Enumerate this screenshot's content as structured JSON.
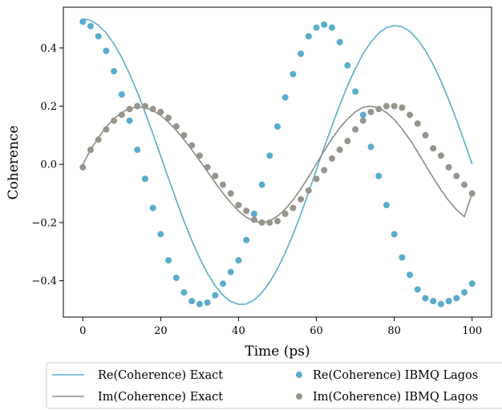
{
  "chart_data": {
    "type": "line",
    "title": "",
    "xlabel": "Time (ps)",
    "ylabel": "Coherence",
    "xlim": [
      -5,
      105
    ],
    "ylim": [
      -0.525,
      0.54
    ],
    "xticks": [
      0,
      20,
      40,
      60,
      80,
      100
    ],
    "xtick_labels": [
      "0",
      "20",
      "40",
      "60",
      "80",
      "100"
    ],
    "yticks": [
      -0.4,
      -0.2,
      0.0,
      0.2,
      0.4
    ],
    "ytick_labels": [
      "−0.4",
      "−0.2",
      "0.0",
      "0.2",
      "0.4"
    ],
    "grid": false,
    "legend_position": "bottom-center, outside plot, 2 columns",
    "colors": {
      "re": "#5aaccc",
      "im": "#8c8c84",
      "re_marker": "#5aaccc",
      "im_marker": "#96958b"
    },
    "legend": [
      {
        "label": "Re(Coherence) Exact",
        "kind": "line",
        "series": "re"
      },
      {
        "label": "Im(Coherence) Exact",
        "kind": "line",
        "series": "im"
      },
      {
        "label": "Re(Coherence) IBMQ Lagos",
        "kind": "marker",
        "series": "re"
      },
      {
        "label": "Im(Coherence) IBMQ Lagos",
        "kind": "marker",
        "series": "im"
      }
    ],
    "x": [
      0,
      2,
      4,
      6,
      8,
      10,
      12,
      14,
      16,
      18,
      20,
      22,
      24,
      26,
      28,
      30,
      32,
      34,
      36,
      38,
      40,
      42,
      44,
      46,
      48,
      50,
      52,
      54,
      56,
      58,
      60,
      62,
      64,
      66,
      68,
      70,
      72,
      74,
      76,
      78,
      80,
      82,
      84,
      86,
      88,
      90,
      92,
      94,
      96,
      98,
      100
    ],
    "series": [
      {
        "name": "Re(Coherence) Exact",
        "kind": "line",
        "values": [
          0.5,
          0.495,
          0.478,
          0.452,
          0.414,
          0.367,
          0.311,
          0.248,
          0.178,
          0.105,
          0.029,
          -0.048,
          -0.123,
          -0.195,
          -0.262,
          -0.322,
          -0.374,
          -0.417,
          -0.45,
          -0.471,
          -0.481,
          -0.48,
          -0.466,
          -0.441,
          -0.405,
          -0.359,
          -0.304,
          -0.241,
          -0.171,
          -0.096,
          -0.019,
          0.058,
          0.132,
          0.204,
          0.27,
          0.329,
          0.38,
          0.42,
          0.451,
          0.47,
          0.477,
          0.473,
          0.457,
          0.429,
          0.391,
          0.343,
          0.286,
          0.222,
          0.152,
          0.078,
          0.001
        ]
      },
      {
        "name": "Im(Coherence) Exact",
        "kind": "line",
        "values": [
          0.0,
          0.05,
          0.092,
          0.128,
          0.157,
          0.178,
          0.192,
          0.197,
          0.195,
          0.185,
          0.168,
          0.145,
          0.117,
          0.085,
          0.05,
          0.013,
          -0.025,
          -0.063,
          -0.099,
          -0.132,
          -0.16,
          -0.182,
          -0.196,
          -0.2,
          -0.194,
          -0.178,
          -0.154,
          -0.122,
          -0.085,
          -0.043,
          0.002,
          0.046,
          0.088,
          0.125,
          0.156,
          0.18,
          0.196,
          0.2,
          0.194,
          0.178,
          0.154,
          0.122,
          0.085,
          0.043,
          -0.002,
          -0.046,
          -0.088,
          -0.125,
          -0.156,
          -0.18,
          -0.1
        ]
      },
      {
        "name": "Re(Coherence) IBMQ Lagos",
        "kind": "scatter",
        "values": [
          0.49,
          0.475,
          0.44,
          0.39,
          0.32,
          0.24,
          0.15,
          0.05,
          -0.05,
          -0.15,
          -0.24,
          -0.33,
          -0.39,
          -0.44,
          -0.47,
          -0.48,
          -0.475,
          -0.45,
          -0.41,
          -0.37,
          -0.33,
          -0.26,
          -0.17,
          -0.07,
          0.03,
          0.13,
          0.23,
          0.31,
          0.38,
          0.44,
          0.47,
          0.48,
          0.47,
          0.42,
          0.34,
          0.25,
          0.17,
          0.06,
          -0.04,
          -0.14,
          -0.24,
          -0.32,
          -0.38,
          -0.43,
          -0.46,
          -0.47,
          -0.48,
          -0.47,
          -0.46,
          -0.44,
          -0.41
        ]
      },
      {
        "name": "Im(Coherence) IBMQ Lagos",
        "kind": "scatter",
        "values": [
          -0.01,
          0.05,
          0.085,
          0.12,
          0.15,
          0.17,
          0.19,
          0.2,
          0.2,
          0.19,
          0.18,
          0.16,
          0.13,
          0.1,
          0.065,
          0.03,
          -0.01,
          -0.04,
          -0.07,
          -0.1,
          -0.14,
          -0.16,
          -0.19,
          -0.2,
          -0.2,
          -0.195,
          -0.17,
          -0.15,
          -0.12,
          -0.09,
          -0.05,
          -0.02,
          0.02,
          0.05,
          0.08,
          0.12,
          0.15,
          0.18,
          0.19,
          0.2,
          0.2,
          0.195,
          0.17,
          0.14,
          0.1,
          0.055,
          0.03,
          -0.01,
          -0.04,
          -0.07,
          -0.1
        ]
      }
    ]
  }
}
